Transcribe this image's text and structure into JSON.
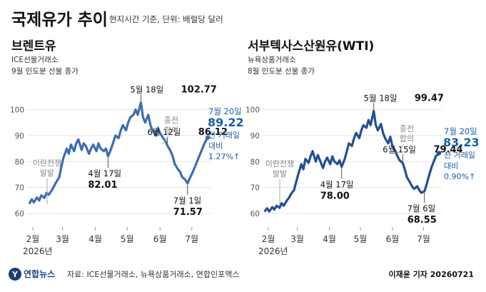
{
  "title": "국제유가 추이",
  "subtitle": "현지시간 기준, 단위: 배럴당 달러",
  "footer": {
    "logo_text": "연합뉴스",
    "source": "자료: ICE선물거래소, 뉴욕상품거래소, 연합인포맥스",
    "credit": "이재윤 기자 20260721"
  },
  "colors": {
    "brent_line": "#3a6fb0",
    "wti_line": "#224f96",
    "highlight_text": "#1a5fa8",
    "grid": "#e3e3e3"
  },
  "chart_data": [
    {
      "type": "line",
      "title": "브렌트유",
      "exchange": "ICE선물거래소",
      "contract": "9월 인도분 선물 종가",
      "y_ticks": [
        "60",
        "70",
        "80",
        "90",
        "100"
      ],
      "ylim": [
        57,
        107
      ],
      "x_ticks": [
        "2월",
        "3월",
        "4월",
        "5월",
        "6월",
        "7월"
      ],
      "x_start_label": "2026년",
      "x": [
        "2026-02-02",
        "2026-02-04",
        "2026-02-06",
        "2026-02-09",
        "2026-02-11",
        "2026-02-13",
        "2026-02-16",
        "2026-02-18",
        "2026-02-20",
        "2026-02-23",
        "2026-02-25",
        "2026-02-27",
        "2026-03-02",
        "2026-03-04",
        "2026-03-06",
        "2026-03-09",
        "2026-03-11",
        "2026-03-13",
        "2026-03-16",
        "2026-03-18",
        "2026-03-20",
        "2026-03-23",
        "2026-03-25",
        "2026-03-27",
        "2026-03-30",
        "2026-04-01",
        "2026-04-03",
        "2026-04-06",
        "2026-04-08",
        "2026-04-10",
        "2026-04-13",
        "2026-04-15",
        "2026-04-17",
        "2026-04-20",
        "2026-04-22",
        "2026-04-24",
        "2026-04-27",
        "2026-04-29",
        "2026-05-01",
        "2026-05-04",
        "2026-05-06",
        "2026-05-08",
        "2026-05-11",
        "2026-05-13",
        "2026-05-15",
        "2026-05-18",
        "2026-05-20",
        "2026-05-22",
        "2026-05-25",
        "2026-05-27",
        "2026-05-29",
        "2026-06-01",
        "2026-06-03",
        "2026-06-05",
        "2026-06-08",
        "2026-06-10",
        "2026-06-12",
        "2026-06-15",
        "2026-06-17",
        "2026-06-19",
        "2026-06-22",
        "2026-06-24",
        "2026-06-26",
        "2026-06-29",
        "2026-07-01",
        "2026-07-03",
        "2026-07-06",
        "2026-07-08",
        "2026-07-10",
        "2026-07-13",
        "2026-07-15",
        "2026-07-17",
        "2026-07-20"
      ],
      "series": [
        {
          "values": [
            64.0,
            65.5,
            64.3,
            66.2,
            65.0,
            67.0,
            66.0,
            68.0,
            67.2,
            69.0,
            70.5,
            72.0,
            74.0,
            78.0,
            81.5,
            85.0,
            83.0,
            86.5,
            84.0,
            87.0,
            88.5,
            84.5,
            87.0,
            86.0,
            83.0,
            85.0,
            86.5,
            84.0,
            87.0,
            85.0,
            84.0,
            85.0,
            82.01,
            85.0,
            87.5,
            90.0,
            89.0,
            92.0,
            94.0,
            92.0,
            95.0,
            97.0,
            98.0,
            100.0,
            98.0,
            102.77,
            97.0,
            95.0,
            98.0,
            94.0,
            92.0,
            90.0,
            93.0,
            91.0,
            89.0,
            88.0,
            86.12,
            84.0,
            82.0,
            79.0,
            77.0,
            76.0,
            74.0,
            73.0,
            71.57,
            73.5,
            76.0,
            78.0,
            80.0,
            83.0,
            85.0,
            87.0,
            89.22
          ]
        }
      ],
      "annotations": [
        {
          "date": "4월 17일",
          "value": "82.01"
        },
        {
          "date": "5월 18일",
          "value": "102.77"
        },
        {
          "date": "6월 12일",
          "value": "86.12"
        },
        {
          "date": "7월 1일",
          "value": "71.57"
        }
      ],
      "event_labels": [
        {
          "line1": "이란전쟁",
          "line2": "발발"
        },
        {
          "line1": "종전",
          "line2": "합의"
        }
      ],
      "latest": {
        "date": "7월 20일",
        "value": "89.22",
        "line1": "전 거래일",
        "line2": "대비",
        "change": "1.27%↑"
      }
    },
    {
      "type": "line",
      "title": "서부텍사스산원유(WTI)",
      "exchange": "뉴욕상품거래소",
      "contract": "8월 인도분 선물 종가",
      "y_ticks": [
        "60",
        "70",
        "80",
        "90",
        "100"
      ],
      "ylim": [
        57,
        107
      ],
      "x_ticks": [
        "2월",
        "3월",
        "4월",
        "5월",
        "6월",
        "7월"
      ],
      "x_start_label": "2026년",
      "x": [
        "2026-02-02",
        "2026-02-04",
        "2026-02-06",
        "2026-02-09",
        "2026-02-11",
        "2026-02-13",
        "2026-02-16",
        "2026-02-18",
        "2026-02-20",
        "2026-02-23",
        "2026-02-25",
        "2026-02-27",
        "2026-03-02",
        "2026-03-04",
        "2026-03-06",
        "2026-03-09",
        "2026-03-11",
        "2026-03-13",
        "2026-03-16",
        "2026-03-18",
        "2026-03-20",
        "2026-03-23",
        "2026-03-25",
        "2026-03-27",
        "2026-03-30",
        "2026-04-01",
        "2026-04-03",
        "2026-04-06",
        "2026-04-08",
        "2026-04-10",
        "2026-04-13",
        "2026-04-15",
        "2026-04-17",
        "2026-04-20",
        "2026-04-22",
        "2026-04-24",
        "2026-04-27",
        "2026-04-29",
        "2026-05-01",
        "2026-05-04",
        "2026-05-06",
        "2026-05-08",
        "2026-05-11",
        "2026-05-13",
        "2026-05-15",
        "2026-05-18",
        "2026-05-20",
        "2026-05-22",
        "2026-05-25",
        "2026-05-27",
        "2026-05-29",
        "2026-06-01",
        "2026-06-03",
        "2026-06-05",
        "2026-06-08",
        "2026-06-10",
        "2026-06-12",
        "2026-06-15",
        "2026-06-17",
        "2026-06-19",
        "2026-06-22",
        "2026-06-24",
        "2026-06-26",
        "2026-06-29",
        "2026-07-01",
        "2026-07-03",
        "2026-07-06",
        "2026-07-08",
        "2026-07-10",
        "2026-07-13",
        "2026-07-15",
        "2026-07-17",
        "2026-07-20"
      ],
      "series": [
        {
          "values": [
            61.0,
            62.0,
            60.8,
            62.5,
            61.5,
            63.0,
            62.2,
            64.0,
            63.0,
            65.0,
            66.0,
            67.5,
            69.0,
            72.0,
            75.0,
            79.0,
            77.0,
            81.0,
            79.5,
            82.0,
            84.0,
            80.0,
            82.5,
            80.5,
            77.5,
            80.0,
            81.5,
            79.0,
            82.0,
            80.0,
            79.0,
            80.5,
            78.0,
            81.0,
            84.0,
            87.0,
            86.0,
            89.0,
            91.0,
            89.0,
            92.0,
            94.0,
            93.0,
            96.0,
            94.0,
            99.47,
            94.0,
            92.0,
            94.5,
            91.0,
            89.0,
            87.0,
            89.5,
            86.0,
            84.0,
            82.0,
            80.5,
            79.44,
            77.0,
            74.0,
            72.0,
            70.5,
            69.5,
            70.5,
            69.0,
            68.0,
            68.55,
            71.0,
            74.0,
            78.0,
            80.0,
            82.0,
            83.23
          ]
        }
      ],
      "annotations": [
        {
          "date": "4월 17일",
          "value": "78.00"
        },
        {
          "date": "5월 18일",
          "value": "99.47"
        },
        {
          "date": "6월 15일",
          "value": "79.44"
        },
        {
          "date": "7월 6일",
          "value": "68.55"
        }
      ],
      "event_labels": [
        {
          "line1": "이란전쟁",
          "line2": "발발"
        },
        {
          "line1": "종전",
          "line2": "합의"
        }
      ],
      "latest": {
        "date": "7월 20일",
        "value": "83.23",
        "line1": "전 거래일",
        "line2": "대비",
        "change": "0.90%↑"
      }
    }
  ]
}
